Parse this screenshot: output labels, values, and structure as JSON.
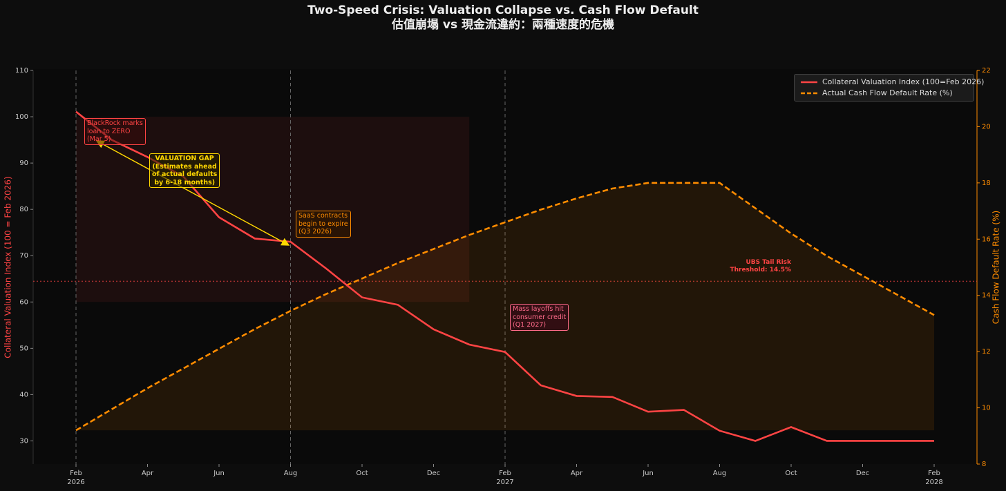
{
  "chart_data": {
    "type": "line",
    "title": "Two-Speed Crisis: Valuation Collapse vs. Cash Flow Default",
    "subtitle": "估值崩塌 vs 現金流違約：兩種速度的危機",
    "y_label": "Collateral Valuation Index (100 = Feb 2026)",
    "y2_label": "Cash Flow Default Rate (%)",
    "x": [
      "2026-02",
      "2026-03",
      "2026-04",
      "2026-05",
      "2026-06",
      "2026-07",
      "2026-08",
      "2026-09",
      "2026-10",
      "2026-11",
      "2026-12",
      "2027-01",
      "2027-02",
      "2027-03",
      "2027-04",
      "2027-05",
      "2027-06",
      "2027-07",
      "2027-08",
      "2027-09",
      "2027-10",
      "2027-11",
      "2027-12",
      "2028-01",
      "2028-02"
    ],
    "xlim": [
      "2026-02",
      "2028-02"
    ],
    "xticks": [
      {
        "value": "2026-02",
        "label": "Feb\n2026"
      },
      {
        "value": "2026-04",
        "label": "Apr"
      },
      {
        "value": "2026-06",
        "label": "Jun"
      },
      {
        "value": "2026-08",
        "label": "Aug"
      },
      {
        "value": "2026-10",
        "label": "Oct"
      },
      {
        "value": "2026-12",
        "label": "Dec"
      },
      {
        "value": "2027-02",
        "label": "Feb\n2027"
      },
      {
        "value": "2027-04",
        "label": "Apr"
      },
      {
        "value": "2027-06",
        "label": "Jun"
      },
      {
        "value": "2027-08",
        "label": "Aug"
      },
      {
        "value": "2027-10",
        "label": "Oct"
      },
      {
        "value": "2027-12",
        "label": "Dec"
      },
      {
        "value": "2028-02",
        "label": "Feb\n2028"
      }
    ],
    "ylim": [
      25,
      110
    ],
    "yticks": [
      30,
      40,
      50,
      60,
      70,
      80,
      90,
      100,
      110
    ],
    "y2lim": [
      8,
      22
    ],
    "y2ticks": [
      8,
      10,
      12,
      14,
      16,
      18,
      20,
      22
    ],
    "series": [
      {
        "name": "Collateral Valuation Index (100=Feb 2026)",
        "color": "#ff4444",
        "dash": false,
        "values": [
          101.1,
          95,
          91.3,
          87.1,
          78.3,
          73.7,
          73,
          67.2,
          61,
          59.4,
          54.1,
          50.8,
          49.2,
          42,
          39.7,
          39.5,
          36.3,
          36.7,
          32.2,
          30,
          33,
          30,
          30,
          30,
          30
        ]
      },
      {
        "name": "Actual Cash Flow Default Rate (%)",
        "color": "#ff8c00",
        "dash": true,
        "axis": "y2",
        "fill": true,
        "values": [
          9.2,
          9.95,
          10.7,
          11.4,
          12.1,
          12.8,
          13.45,
          14.05,
          14.6,
          15.15,
          15.65,
          16.15,
          16.6,
          17.05,
          17.45,
          17.8,
          18,
          18,
          18,
          17.1,
          16.2,
          15.4,
          14.7,
          14,
          13.3
        ]
      }
    ],
    "vlines": [
      "2026-02",
      "2026-08",
      "2027-02"
    ],
    "shade": {
      "x": [
        "2026-02",
        "2027-01"
      ],
      "y": [
        60,
        100
      ]
    },
    "threshold": {
      "value": 14.5,
      "label": "UBS Tail Risk\nThreshold: 14.5%",
      "color": "#ff4444"
    },
    "annotations": [
      {
        "text": "BlackRock marks\nloan to ZERO\n(Mar 5)",
        "color": "#ff4444"
      },
      {
        "text": "VALUATION GAP\n(Estimates ahead\nof actual defaults\nby 6-18 months)",
        "color": "#ffd700"
      },
      {
        "text": "SaaS contracts\nbegin to expire\n(Q3 2026)",
        "color": "#ff8c00"
      },
      {
        "text": "Mass layoffs hit\nconsumer credit\n(Q1 2027)",
        "color": "#ff6b8a"
      }
    ],
    "legend": "upper right"
  }
}
